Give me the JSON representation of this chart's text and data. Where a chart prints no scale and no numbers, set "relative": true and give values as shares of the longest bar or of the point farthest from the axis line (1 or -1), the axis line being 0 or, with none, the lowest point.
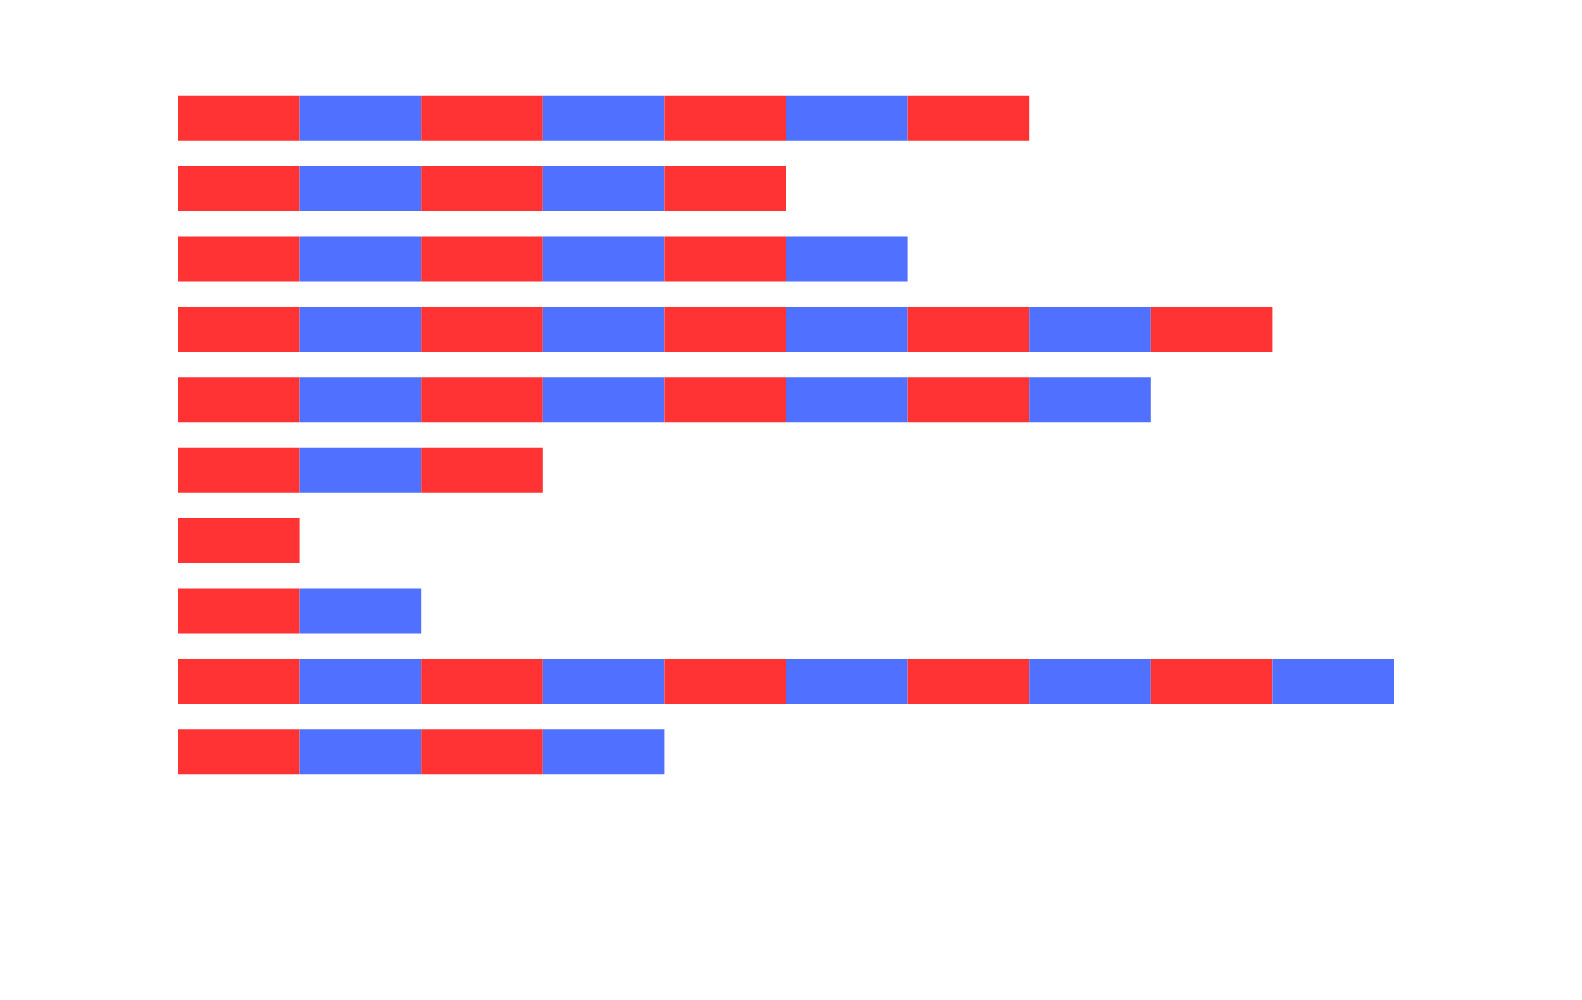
{
  "chart_data": {
    "type": "bar",
    "orientation": "horizontal",
    "stacked": true,
    "relative": true,
    "categories": [
      null,
      null,
      null,
      null,
      null,
      null,
      null,
      null,
      null,
      null
    ],
    "series": [
      {
        "color": "#ff3333",
        "values": [
          0.1,
          0.1,
          0.1,
          0.1,
          0.1,
          0.1,
          0.1,
          0.1,
          0.1,
          0.1
        ]
      },
      {
        "color": "#5070ff",
        "values": [
          0.1,
          0.1,
          0.1,
          0.1,
          0.1,
          0.1,
          null,
          0.1,
          0.1,
          0.1
        ]
      },
      {
        "color": "#ff3333",
        "values": [
          0.1,
          0.1,
          0.1,
          0.1,
          0.1,
          0.1,
          null,
          null,
          0.1,
          0.1
        ]
      },
      {
        "color": "#5070ff",
        "values": [
          0.1,
          0.1,
          0.1,
          0.1,
          0.1,
          null,
          null,
          null,
          0.1,
          0.1
        ]
      },
      {
        "color": "#ff3333",
        "values": [
          0.1,
          0.1,
          0.1,
          0.1,
          0.1,
          null,
          null,
          null,
          0.1,
          null
        ]
      },
      {
        "color": "#5070ff",
        "values": [
          0.1,
          null,
          0.1,
          0.1,
          0.1,
          null,
          null,
          null,
          0.1,
          null
        ]
      },
      {
        "color": "#ff3333",
        "values": [
          0.1,
          null,
          null,
          0.1,
          0.1,
          null,
          null,
          null,
          0.1,
          null
        ]
      },
      {
        "color": "#5070ff",
        "values": [
          null,
          null,
          null,
          0.1,
          0.1,
          null,
          null,
          null,
          0.1,
          null
        ]
      },
      {
        "color": "#ff3333",
        "values": [
          null,
          null,
          null,
          0.1,
          null,
          null,
          null,
          null,
          0.1,
          null
        ]
      },
      {
        "color": "#5070ff",
        "values": [
          null,
          null,
          null,
          null,
          null,
          null,
          null,
          null,
          0.1,
          null
        ]
      }
    ]
  }
}
